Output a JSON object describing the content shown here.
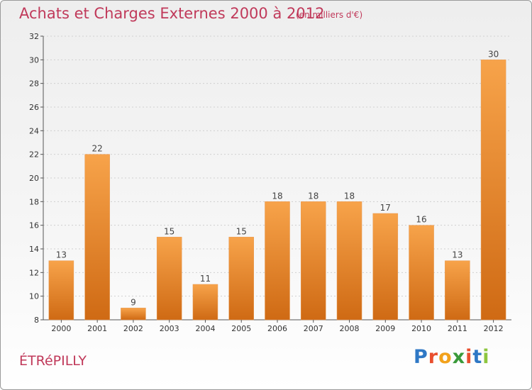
{
  "header": {
    "title": "Achats et Charges Externes 2000 à 2012",
    "unit": "(en milliers d'€)"
  },
  "footer": {
    "commune": "ÉTRéPILLY",
    "logo": {
      "letters": [
        "P",
        "r",
        "o",
        "x",
        "i",
        "t",
        "i"
      ],
      "colors": [
        "#2f78c5",
        "#e94e2e",
        "#f2a21c",
        "#3a9a3a",
        "#e94e2e",
        "#2f78c5",
        "#8dc63f"
      ]
    }
  },
  "colors": {
    "bar_light": "#f7a34a",
    "bar_dark": "#cf6a14",
    "axis": "#555555",
    "grid": "#d0d0d0",
    "title": "#c0395a"
  },
  "chart_data": {
    "type": "bar",
    "categories": [
      "2000",
      "2001",
      "2002",
      "2003",
      "2004",
      "2005",
      "2006",
      "2007",
      "2008",
      "2009",
      "2010",
      "2011",
      "2012"
    ],
    "values": [
      13,
      22,
      9,
      15,
      11,
      15,
      18,
      18,
      18,
      17,
      16,
      13,
      30
    ],
    "title": "Achats et Charges Externes 2000 à 2012",
    "xlabel": "",
    "ylabel": "",
    "ylim": [
      8,
      32
    ],
    "yticks": [
      8,
      10,
      12,
      14,
      16,
      18,
      20,
      22,
      24,
      26,
      28,
      30,
      32
    ],
    "grid": true,
    "data_labels": true
  }
}
